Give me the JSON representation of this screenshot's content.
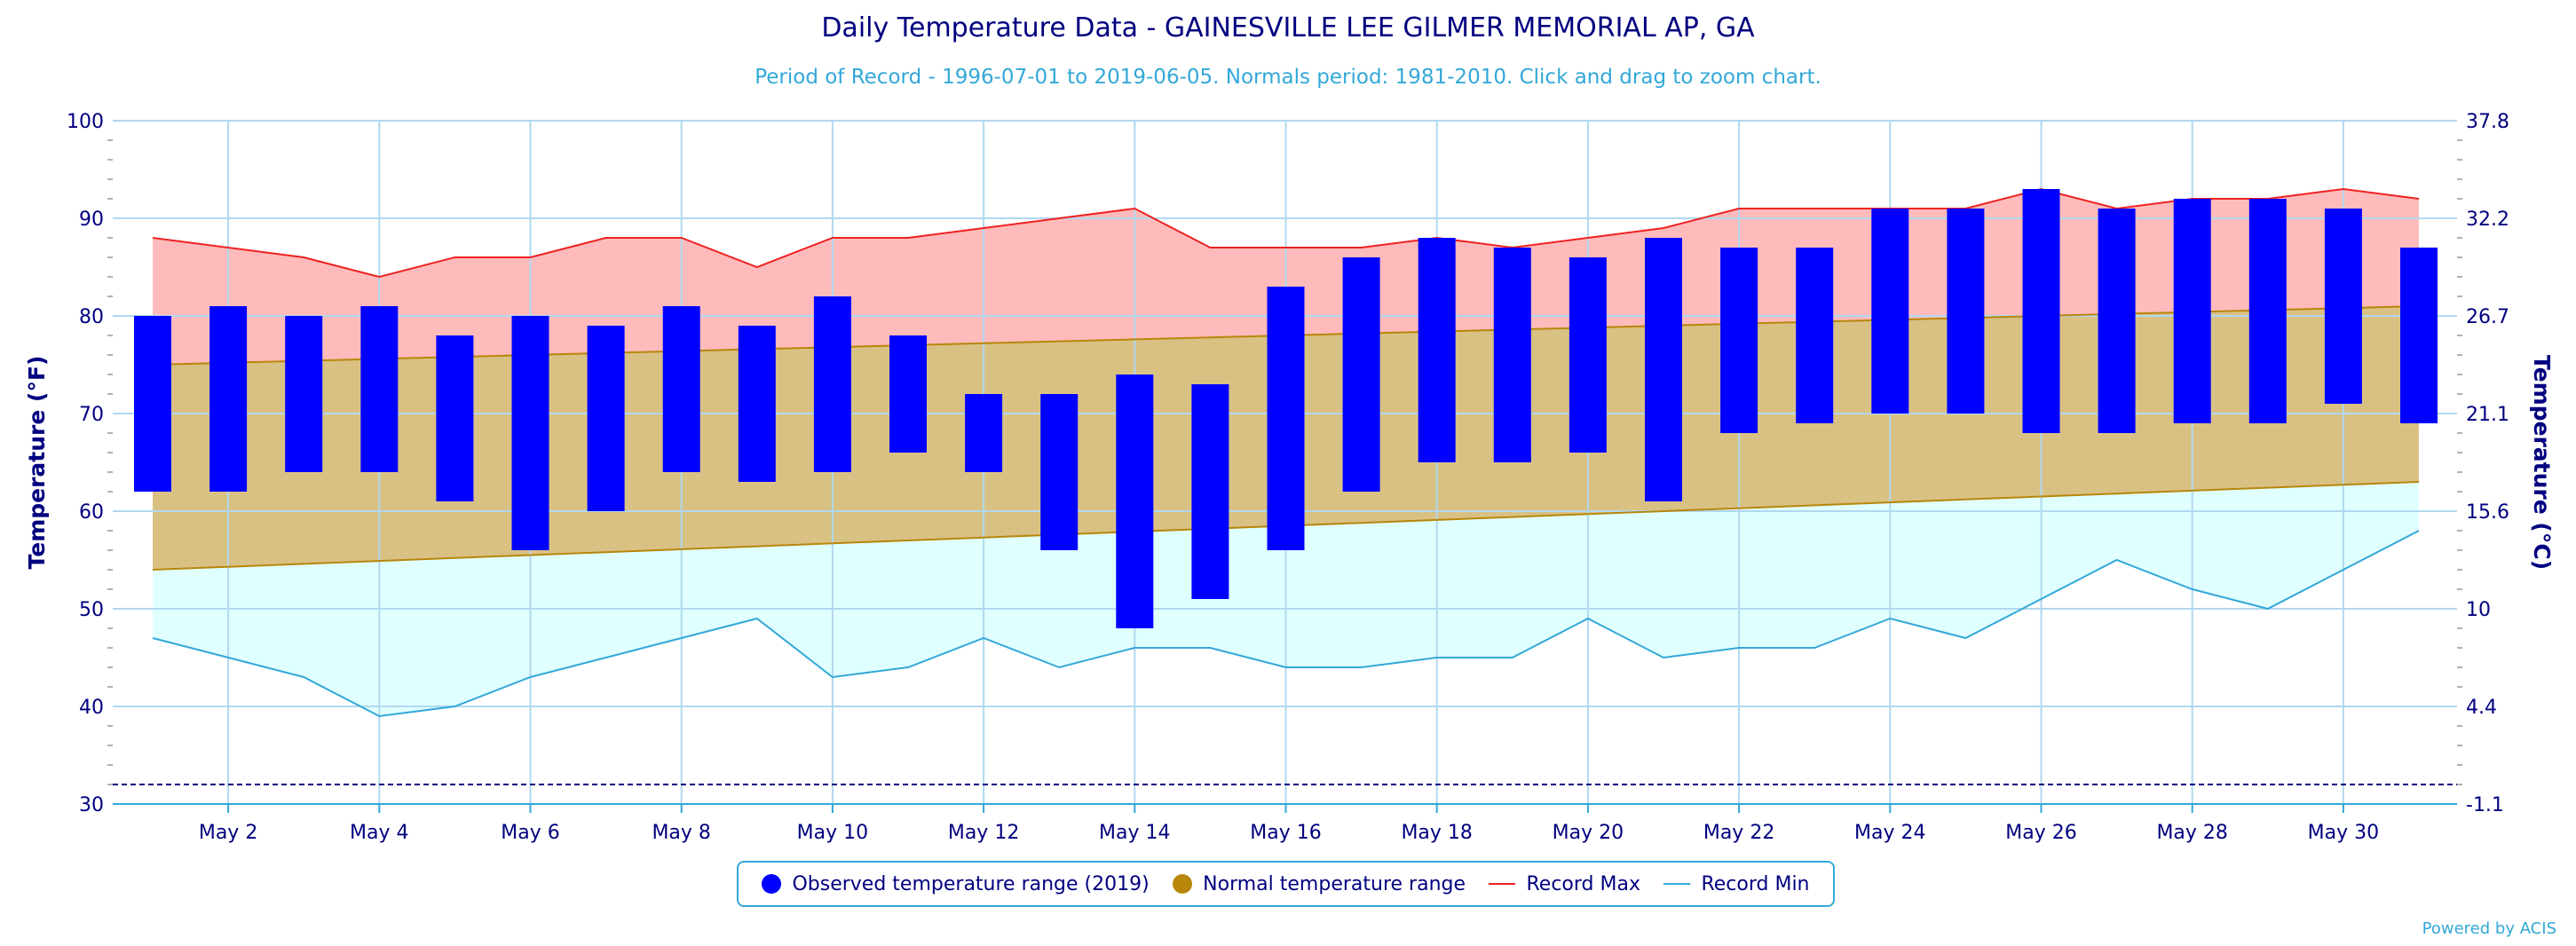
{
  "title": "Daily Temperature Data - GAINESVILLE LEE GILMER MEMORIAL AP, GA",
  "subtitle": "Period of Record - 1996-07-01 to 2019-06-05. Normals period: 1981-2010. Click and drag to zoom chart.",
  "credits": "Powered by ACIS",
  "colors": {
    "observed": "#0000ff",
    "normal_fill": "#d9c184",
    "normal_line": "#b8860b",
    "normal_legend": "#b8860b",
    "record_max": "#ee2222",
    "record_max_fill": "#ffbbbb",
    "record_min": "#33a8d8",
    "record_min_fill": "#e0ffff",
    "axis_text": "#000080",
    "grid": "#b0d8f0",
    "freeze_line": "#000080"
  },
  "legend": {
    "observed": "Observed temperature range (2019)",
    "normal": "Normal temperature range",
    "record_max": "Record Max",
    "record_min": "Record Min"
  },
  "chart_data": {
    "type": "bar",
    "title": "Daily Temperature Data - GAINESVILLE LEE GILMER MEMORIAL AP, GA",
    "ylabel": "Temperature (°F)",
    "ylabel_right": "Temperature (°C)",
    "ylim": [
      30,
      100
    ],
    "yticks": [
      30,
      40,
      50,
      60,
      70,
      80,
      90,
      100
    ],
    "yticks_right": [
      "-1.1",
      "4.4",
      "10",
      "15.6",
      "21.1",
      "26.7",
      "32.2",
      "37.8"
    ],
    "x_tick_labels": [
      "May 2",
      "May 4",
      "May 6",
      "May 8",
      "May 10",
      "May 12",
      "May 14",
      "May 16",
      "May 18",
      "May 20",
      "May 22",
      "May 24",
      "May 26",
      "May 28",
      "May 30"
    ],
    "x_tick_days": [
      2,
      4,
      6,
      8,
      10,
      12,
      14,
      16,
      18,
      20,
      22,
      24,
      26,
      28,
      30
    ],
    "days": [
      1,
      2,
      3,
      4,
      5,
      6,
      7,
      8,
      9,
      10,
      11,
      12,
      13,
      14,
      15,
      16,
      17,
      18,
      19,
      20,
      21,
      22,
      23,
      24,
      25,
      26,
      27,
      28,
      29,
      30,
      31
    ],
    "observed_high": [
      80,
      81,
      80,
      81,
      78,
      80,
      79,
      81,
      79,
      82,
      78,
      72,
      72,
      74,
      73,
      83,
      86,
      88,
      87,
      86,
      88,
      87,
      87,
      91,
      91,
      93,
      91,
      92,
      92,
      91,
      87
    ],
    "observed_low": [
      62,
      62,
      64,
      64,
      61,
      56,
      60,
      64,
      63,
      64,
      66,
      64,
      56,
      48,
      51,
      56,
      62,
      65,
      65,
      66,
      61,
      68,
      69,
      70,
      70,
      68,
      68,
      69,
      69,
      71,
      69
    ],
    "normal_high": [
      75.0,
      75.2,
      75.4,
      75.6,
      75.8,
      76.0,
      76.2,
      76.4,
      76.6,
      76.8,
      77.0,
      77.2,
      77.4,
      77.6,
      77.8,
      78.0,
      78.2,
      78.4,
      78.6,
      78.8,
      79.0,
      79.2,
      79.4,
      79.6,
      79.8,
      80.0,
      80.2,
      80.4,
      80.6,
      80.8,
      81.0
    ],
    "normal_low": [
      54.0,
      54.3,
      54.6,
      54.9,
      55.2,
      55.5,
      55.8,
      56.1,
      56.4,
      56.7,
      57.0,
      57.3,
      57.6,
      57.9,
      58.2,
      58.5,
      58.8,
      59.1,
      59.4,
      59.7,
      60.0,
      60.3,
      60.6,
      60.9,
      61.2,
      61.5,
      61.8,
      62.1,
      62.4,
      62.7,
      63.0
    ],
    "record_max": [
      88,
      87,
      86,
      84,
      86,
      86,
      88,
      88,
      85,
      88,
      88,
      89,
      90,
      91,
      87,
      87,
      87,
      88,
      87,
      88,
      89,
      91,
      91,
      91,
      91,
      93,
      91,
      92,
      92,
      93,
      92
    ],
    "record_min": [
      47,
      45,
      43,
      39,
      40,
      43,
      45,
      47,
      49,
      43,
      44,
      47,
      44,
      46,
      46,
      44,
      44,
      45,
      45,
      49,
      45,
      46,
      46,
      49,
      47,
      51,
      55,
      52,
      50,
      54,
      58
    ],
    "freeze_line": 32,
    "grid": true,
    "legend_position": "bottom-center"
  }
}
